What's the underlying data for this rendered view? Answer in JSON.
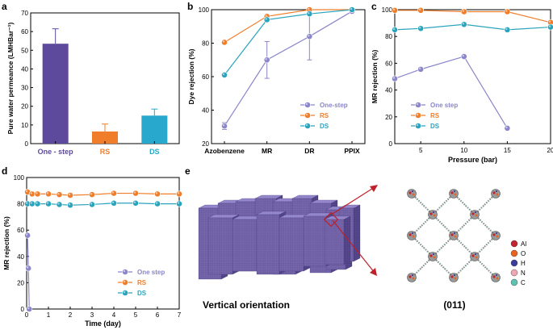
{
  "colors": {
    "one_step": "#8a86c9",
    "rs": "#f07d2a",
    "ds": "#2aa4bd",
    "bar_a1": "#5e4a9c",
    "bar_a2": "#f07d2a",
    "bar_a3": "#28a8cc",
    "crystal": "#6a5a9e",
    "arrow": "#c0202a"
  },
  "labels": {
    "a": "a",
    "b": "b",
    "c": "c",
    "d": "d",
    "e": "e",
    "e_caption_left": "Vertical orientation",
    "e_caption_right": "(011)"
  },
  "atom_legend": [
    {
      "symbol": "Al",
      "color": "#c4242e"
    },
    {
      "symbol": "O",
      "color": "#e8631e"
    },
    {
      "symbol": "H",
      "color": "#3c3c9a"
    },
    {
      "symbol": "N",
      "color": "#f2a8b2"
    },
    {
      "symbol": "C",
      "color": "#5ec2b0"
    }
  ],
  "chart_data": [
    {
      "id": "a",
      "type": "bar",
      "ylabel": "Pure water permeance (LMHBar⁻¹)",
      "ylim": [
        0,
        70
      ],
      "yticks": [
        0,
        10,
        20,
        30,
        40,
        50,
        60,
        70
      ],
      "categories": [
        "One - step",
        "RS",
        "DS"
      ],
      "category_colors": [
        "#5e4a9c",
        "#f07d2a",
        "#28a8cc"
      ],
      "values": [
        53.5,
        6.5,
        15
      ],
      "errors": [
        8,
        4,
        3.5
      ]
    },
    {
      "id": "b",
      "type": "line",
      "ylabel": "Dye rejection (%)",
      "ylim": [
        20,
        100
      ],
      "yticks": [
        20,
        40,
        60,
        80,
        100
      ],
      "categories": [
        "Azobenzene",
        "MR",
        "DR",
        "PPIX"
      ],
      "legend": "bottom-right",
      "series": [
        {
          "name": "One-step",
          "values": [
            30.5,
            70,
            84,
            99
          ],
          "errors": [
            2,
            11,
            14,
            1
          ]
        },
        {
          "name": "RS",
          "values": [
            80.5,
            96,
            100,
            100
          ],
          "errors": [
            0,
            0,
            0,
            0
          ]
        },
        {
          "name": "DS",
          "values": [
            61,
            94,
            97.5,
            100
          ],
          "errors": [
            0,
            0,
            0,
            0
          ]
        }
      ]
    },
    {
      "id": "c",
      "type": "line",
      "xlabel": "Pressure (bar)",
      "ylabel": "MR rejection (%)",
      "xlim": [
        2,
        20
      ],
      "xticks": [
        5,
        10,
        15,
        20
      ],
      "ylim": [
        0,
        100
      ],
      "yticks": [
        0,
        20,
        40,
        60,
        80,
        100
      ],
      "legend": "bottom-left",
      "series": [
        {
          "name": "One step",
          "x": [
            2,
            5,
            10,
            15
          ],
          "y": [
            48.5,
            55.5,
            65,
            11.5
          ]
        },
        {
          "name": "RS",
          "x": [
            2,
            5,
            10,
            15,
            20
          ],
          "y": [
            99.5,
            99.5,
            98.5,
            98.5,
            90.5
          ]
        },
        {
          "name": "DS",
          "x": [
            2,
            5,
            10,
            15,
            20
          ],
          "y": [
            85,
            86,
            89,
            85,
            87
          ]
        }
      ]
    },
    {
      "id": "d",
      "type": "line",
      "xlabel": "Time (day)",
      "ylabel": "MR rejection (%)",
      "xlim": [
        0,
        7
      ],
      "xticks": [
        0,
        1,
        2,
        3,
        4,
        5,
        6,
        7
      ],
      "ylim": [
        0,
        100
      ],
      "yticks": [
        0,
        20,
        40,
        60,
        80,
        100
      ],
      "legend": "bottom-right",
      "series": [
        {
          "name": "One step",
          "x": [
            0.04,
            0.08,
            0.12
          ],
          "y": [
            56,
            31,
            0
          ]
        },
        {
          "name": "RS",
          "x": [
            0.04,
            0.25,
            0.5,
            1,
            1.5,
            2,
            3,
            4,
            5,
            6,
            7
          ],
          "y": [
            89,
            87.5,
            87.5,
            87.5,
            87,
            86.5,
            87,
            88,
            88,
            87.5,
            87.5
          ]
        },
        {
          "name": "DS",
          "x": [
            0.04,
            0.25,
            0.5,
            1,
            1.5,
            2,
            3,
            4,
            5,
            6,
            7
          ],
          "y": [
            80,
            80,
            80,
            80,
            79.5,
            79,
            79.5,
            80.5,
            80.5,
            80,
            80
          ]
        }
      ]
    }
  ]
}
